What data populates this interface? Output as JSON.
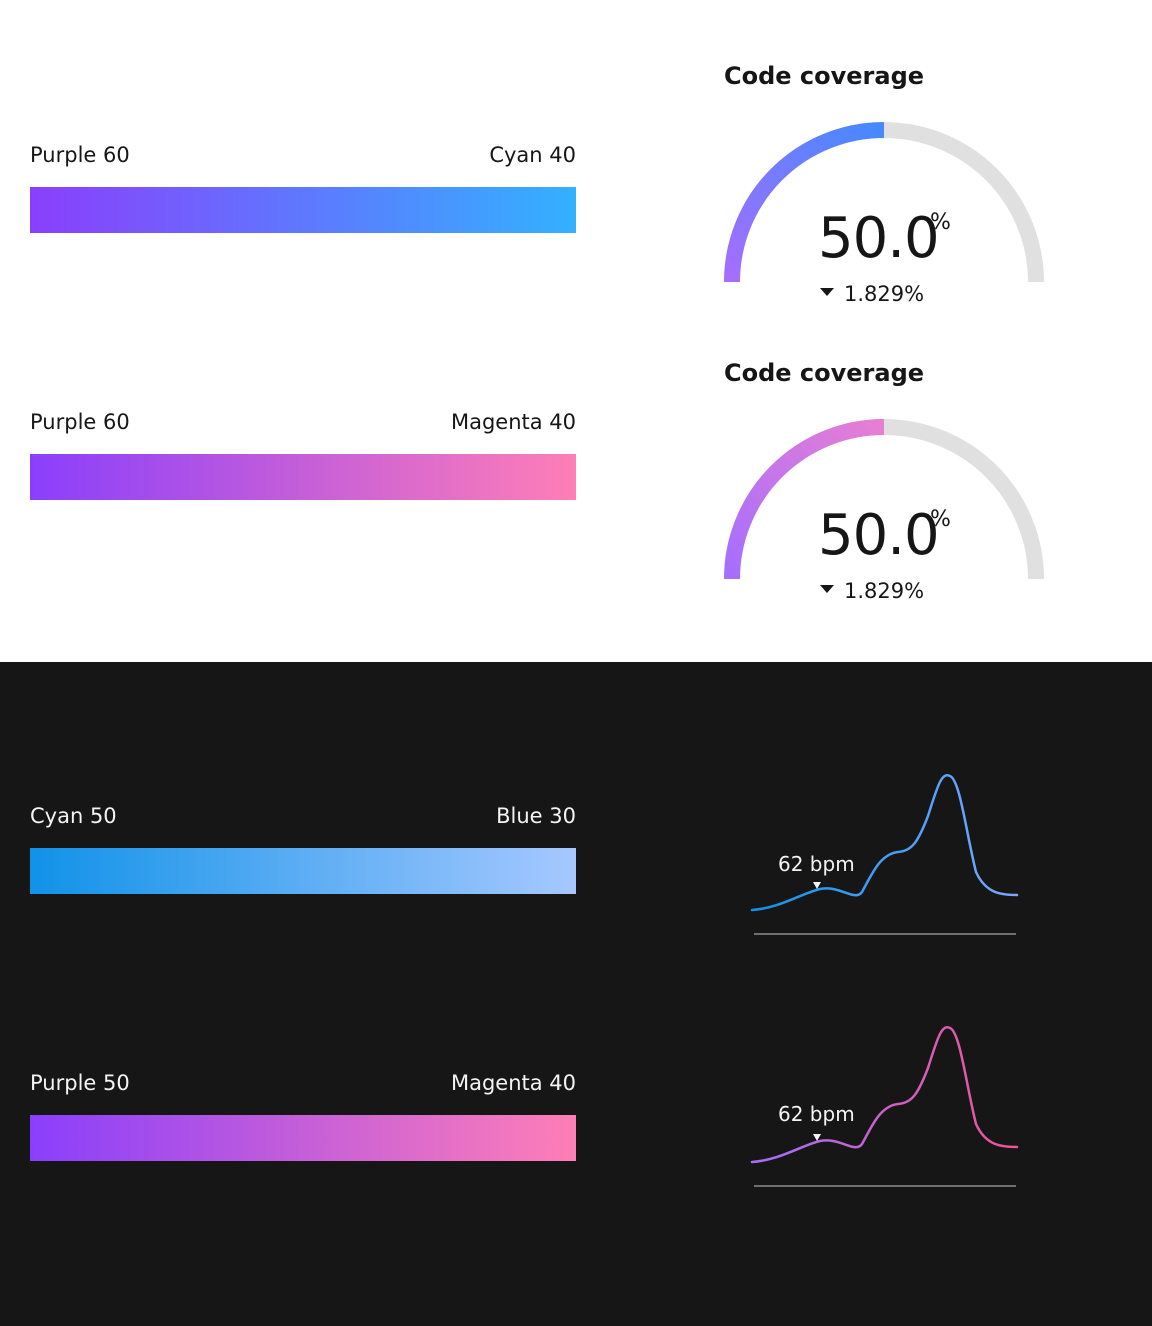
{
  "light_section": {
    "swatches": [
      {
        "from": "Purple 60",
        "to": "Cyan 40",
        "colors": [
          "#8a3ffc",
          "#33b1ff"
        ]
      },
      {
        "from": "Purple 60",
        "to": "Magenta 40",
        "colors": [
          "#8a3ffc",
          "#ff7eb6"
        ]
      }
    ],
    "gauges": [
      {
        "title": "Code coverage",
        "value": "50.0",
        "unit": "%",
        "delta": "1.829%",
        "fraction": 0.5,
        "colors": [
          "#a56eff",
          "#4589ff"
        ],
        "track_color": "#e0e0e0"
      },
      {
        "title": "Code coverage",
        "value": "50.0",
        "unit": "%",
        "delta": "1.829%",
        "fraction": 0.5,
        "colors": [
          "#a56eff",
          "#e77ed3"
        ],
        "track_color": "#e0e0e0"
      }
    ]
  },
  "dark_section": {
    "swatches": [
      {
        "from": "Cyan 50",
        "to": "Blue 30",
        "colors": [
          "#1192e8",
          "#a6c8ff"
        ]
      },
      {
        "from": "Purple 50",
        "to": "Magenta 40",
        "colors": [
          "#8a3ffc",
          "#ff7eb6"
        ]
      }
    ],
    "sparklines": [
      {
        "label": "62 bpm",
        "colors": [
          "#1192e8",
          "#78a9ff"
        ]
      },
      {
        "label": "62 bpm",
        "colors": [
          "#a56eff",
          "#ee5396"
        ]
      }
    ]
  }
}
